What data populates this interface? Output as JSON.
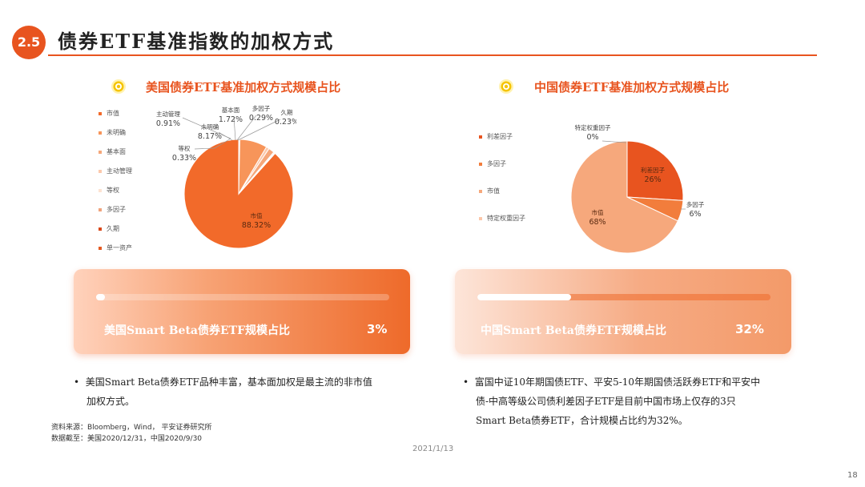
{
  "header": {
    "section_number": "2.5",
    "title": "债券ETF基准指数的加权方式"
  },
  "colors": {
    "accent": "#e8541f"
  },
  "left": {
    "chart_title": "美国债券ETF基准加权方式规模占比",
    "legend": [
      "市值",
      "未明确",
      "基本面",
      "主动管理",
      "等权",
      "多因子",
      "久期",
      "单一资产"
    ],
    "legend_colors": [
      "#f26a2a",
      "#f7955a",
      "#f5a77a",
      "#fcc9ac",
      "#fde3d2",
      "#f0a37c",
      "#d9481a",
      "#e45a22"
    ],
    "card": {
      "label": "美国Smart Beta债券ETF规模占比",
      "value": "3%",
      "progress": 0.03
    },
    "bullet": {
      "line1": "美国Smart Beta债券ETF品种丰富，基本面加权是最主流的非市值",
      "line2": "加权方式。"
    }
  },
  "right": {
    "chart_title": "中国债券ETF基准加权方式规模占比",
    "legend": [
      "利差因子",
      "多因子",
      "市值",
      "特定权重因子"
    ],
    "legend_colors": [
      "#e8541f",
      "#f27d3c",
      "#f6a87c",
      "#fcc7a8"
    ],
    "card": {
      "label": "中国Smart Beta债券ETF规模占比",
      "value": "32%",
      "progress": 0.32
    },
    "bullet": {
      "line1": "富国中证10年期国债ETF、平安5-10年期国债活跃券ETF和平安中",
      "line2": "债-中高等级公司债利差因子ETF是目前中国市场上仅存的3只",
      "line3": "Smart Beta债券ETF，合计规模占比约为32%。"
    }
  },
  "source": {
    "line1": "资料来源：Bloomberg，Wind，  平安证券研究所",
    "line2": "数据截至：美国2020/12/31，中国2020/9/30"
  },
  "footer": {
    "date": "2021/1/13",
    "page": "18"
  },
  "chart_data": [
    {
      "type": "pie",
      "title": "美国债券ETF基准加权方式规模占比",
      "series": [
        {
          "label": "市值",
          "value": 88.32,
          "pct": "88.32%",
          "color": "#f26a2a"
        },
        {
          "label": "等权",
          "value": 0.33,
          "pct": "0.33%",
          "color": "#fde3d2"
        },
        {
          "label": "未明确",
          "value": 8.17,
          "pct": "8.17%",
          "color": "#f7955a"
        },
        {
          "label": "主动管理",
          "value": 0.91,
          "pct": "0.91%",
          "color": "#fcc9ac"
        },
        {
          "label": "基本面",
          "value": 1.72,
          "pct": "1.72%",
          "color": "#f5a77a"
        },
        {
          "label": "多因子",
          "value": 0.29,
          "pct": "0.29%",
          "color": "#f0a37c"
        },
        {
          "label": "久期",
          "value": 0.23,
          "pct": "0.23%",
          "color": "#d9481a"
        }
      ]
    },
    {
      "type": "pie",
      "title": "中国债券ETF基准加权方式规模占比",
      "series": [
        {
          "label": "利差因子",
          "value": 26,
          "pct": "26%",
          "color": "#e8541f"
        },
        {
          "label": "多因子",
          "value": 6,
          "pct": "6%",
          "color": "#f27d3c"
        },
        {
          "label": "市值",
          "value": 68,
          "pct": "68%",
          "color": "#f6a87c"
        },
        {
          "label": "特定权重因子",
          "value": 0,
          "pct": "0%",
          "color": "#fcc7a8"
        }
      ]
    }
  ]
}
